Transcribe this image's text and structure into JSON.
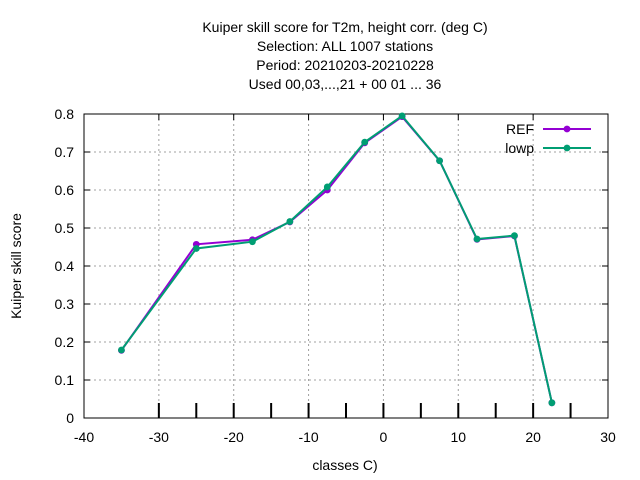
{
  "chart_data": {
    "type": "line",
    "title_lines": [
      "Kuiper skill score  for T2m, height corr. (deg C)",
      "Selection: ALL   1007 stations",
      "Period: 20210203-20210228",
      "Used  00,03,...,21  + 00 01 ... 36"
    ],
    "xlabel": "classes C)",
    "ylabel": "Kuiper skill score",
    "xlim": [
      -40,
      30
    ],
    "ylim": [
      0,
      0.8
    ],
    "xticks": [
      -40,
      -30,
      -20,
      -10,
      0,
      10,
      20,
      30
    ],
    "yticks": [
      0,
      0.1,
      0.2,
      0.3,
      0.4,
      0.5,
      0.6,
      0.7,
      0.8
    ],
    "xtick_labels": [
      "-40",
      "-30",
      "-20",
      "-10",
      "0",
      "10",
      "20",
      "30"
    ],
    "ytick_labels": [
      "0",
      "0.1",
      "0.2",
      "0.3",
      "0.4",
      "0.5",
      "0.6",
      "0.7",
      "0.8"
    ],
    "class_ticks": [
      -30,
      -25,
      -20,
      -15,
      -10,
      -5,
      0,
      5,
      10,
      15,
      20,
      25
    ],
    "grid": true,
    "legend_position": "top-right",
    "series": [
      {
        "name": "REF",
        "color": "#9400d3",
        "x": [
          -35,
          -25,
          -17.5,
          -12.5,
          -7.5,
          -2.5,
          2.5,
          7.5,
          12.5,
          17.5,
          22.5
        ],
        "y": [
          0.178,
          0.457,
          0.469,
          0.516,
          0.6,
          0.724,
          0.793,
          0.677,
          0.47,
          0.479,
          0.04
        ]
      },
      {
        "name": "lowp",
        "color": "#009e73",
        "x": [
          -35,
          -25,
          -17.5,
          -12.5,
          -7.5,
          -2.5,
          2.5,
          7.5,
          12.5,
          17.5,
          22.5
        ],
        "y": [
          0.179,
          0.446,
          0.464,
          0.517,
          0.608,
          0.726,
          0.795,
          0.677,
          0.471,
          0.48,
          0.04
        ]
      }
    ]
  }
}
